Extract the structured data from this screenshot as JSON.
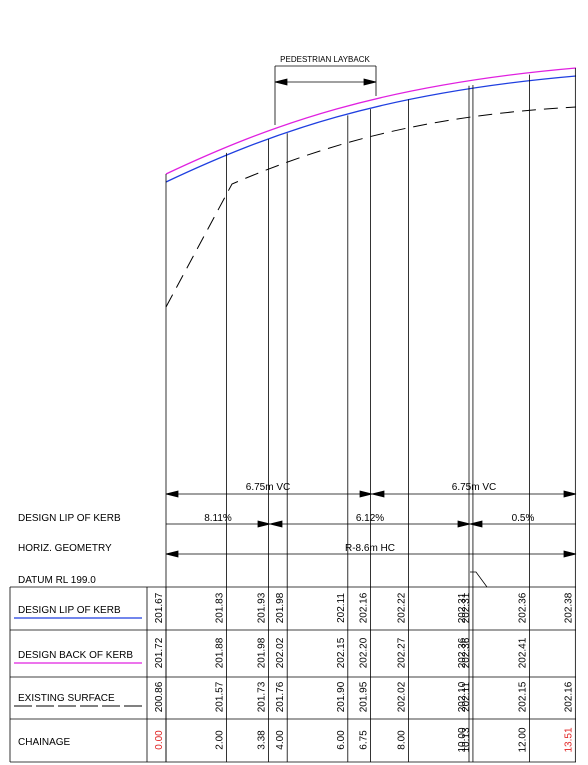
{
  "layback_label": "PEDESTRIAN LAYBACK",
  "vc_labels": [
    "6.75m VC",
    "6.75m VC"
  ],
  "grades": [
    "8.11%",
    "6.12%",
    "0.5%"
  ],
  "hc_label": "R-8.6m HC",
  "datum": "DATUM RL 199.0",
  "row_labels": {
    "lip": "DESIGN LIP OF KERB",
    "horiz": "HORIZ. GEOMETRY",
    "design_lip": "DESIGN LIP OF KERB",
    "design_back": "DESIGN BACK OF KERB",
    "existing": "EXISTING SURFACE",
    "chainage": "CHAINAGE"
  },
  "colors": {
    "design_lip": "#1f3fe0",
    "design_back": "#e020e0",
    "existing": "#000000",
    "highlight": "#e02020"
  },
  "columns": [
    {
      "chainage": "0.00",
      "lip": "201.67",
      "back": "201.72",
      "exist": "200.86",
      "red": true
    },
    {
      "chainage": "2.00",
      "lip": "201.83",
      "back": "201.88",
      "exist": "201.57"
    },
    {
      "chainage": "3.38",
      "lip": "201.93",
      "back": "201.98",
      "exist": "201.73"
    },
    {
      "chainage": "4.00",
      "lip": "201.98",
      "back": "202.02",
      "exist": "201.76"
    },
    {
      "chainage": "6.00",
      "lip": "202.11",
      "back": "202.15",
      "exist": "201.90"
    },
    {
      "chainage": "6.75",
      "lip": "202.16",
      "back": "202.20",
      "exist": "201.95"
    },
    {
      "chainage": "8.00",
      "lip": "202.22",
      "back": "202.27",
      "exist": "202.02"
    },
    {
      "chainage": "10.00",
      "lip": "202.31",
      "back": "202.36",
      "exist": "202.10"
    },
    {
      "chainage": "10.13",
      "lip": "202.31",
      "back": "202.36",
      "exist": "202.11"
    },
    {
      "chainage": "12.00",
      "lip": "202.36",
      "back": "202.41",
      "exist": "202.15"
    },
    {
      "chainage": "13.51",
      "lip": "202.38",
      "back": "",
      "exist": "202.16",
      "red": true
    }
  ]
}
